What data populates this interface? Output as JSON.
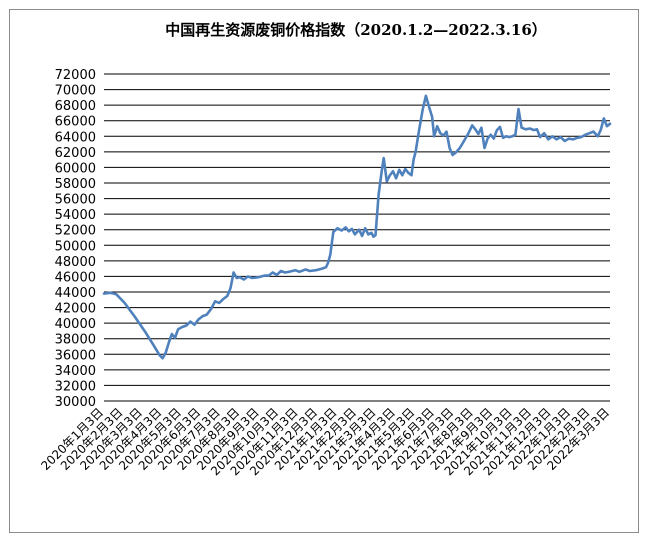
{
  "chart_data": {
    "type": "line",
    "title": "中国再生资源废铜价格指数（2020.1.2—2022.3.16）",
    "xlabel": "",
    "ylabel": "",
    "ylim": [
      30000,
      72000
    ],
    "y_ticks": [
      "72000",
      "70000",
      "68000",
      "66000",
      "64000",
      "62000",
      "60000",
      "58000",
      "56000",
      "54000",
      "52000",
      "50000",
      "48000",
      "46000",
      "44000",
      "42000",
      "40000",
      "38000",
      "36000",
      "34000",
      "32000",
      "30000"
    ],
    "x_tick_labels": [
      "2020年1月3日",
      "2020年2月3日",
      "2020年3月3日",
      "2020年4月3日",
      "2020年5月3日",
      "2020年6月3日",
      "2020年7月3日",
      "2020年8月3日",
      "2020年9月3日",
      "2020年10月3日",
      "2020年11月3日",
      "2020年12月3日",
      "2021年1月3日",
      "2021年2月3日",
      "2021年3月3日",
      "2021年4月3日",
      "2021年5月3日",
      "2021年6月3日",
      "2021年7月3日",
      "2021年8月3日",
      "2021年9月3日",
      "2021年10月3日",
      "2021年11月3日",
      "2021年12月3日",
      "2022年1月3日",
      "2022年2月3日",
      "2022年3月3日"
    ],
    "grid": "horizontal",
    "series_color": "#4f81bd",
    "series": [
      {
        "values": [
          [
            0.0,
            43800
          ],
          [
            0.3,
            43900
          ],
          [
            0.6,
            43700
          ],
          [
            1.0,
            42600
          ],
          [
            1.5,
            40800
          ],
          [
            2.0,
            38900
          ],
          [
            2.4,
            37200
          ],
          [
            2.7,
            35900
          ],
          [
            2.85,
            35500
          ],
          [
            3.0,
            36200
          ],
          [
            3.15,
            37500
          ],
          [
            3.3,
            38600
          ],
          [
            3.45,
            38100
          ],
          [
            3.6,
            39200
          ],
          [
            3.8,
            39500
          ],
          [
            4.0,
            39700
          ],
          [
            4.2,
            40200
          ],
          [
            4.4,
            39800
          ],
          [
            4.6,
            40500
          ],
          [
            4.8,
            40900
          ],
          [
            5.0,
            41100
          ],
          [
            5.2,
            41800
          ],
          [
            5.4,
            42800
          ],
          [
            5.6,
            42600
          ],
          [
            5.8,
            43100
          ],
          [
            6.0,
            43500
          ],
          [
            6.15,
            44500
          ],
          [
            6.3,
            46500
          ],
          [
            6.45,
            45800
          ],
          [
            6.6,
            45900
          ],
          [
            6.8,
            45600
          ],
          [
            7.0,
            46000
          ],
          [
            7.2,
            45800
          ],
          [
            7.5,
            45900
          ],
          [
            7.8,
            46100
          ],
          [
            8.0,
            46100
          ],
          [
            8.2,
            46500
          ],
          [
            8.4,
            46200
          ],
          [
            8.6,
            46700
          ],
          [
            8.8,
            46500
          ],
          [
            9.0,
            46600
          ],
          [
            9.3,
            46800
          ],
          [
            9.5,
            46600
          ],
          [
            9.8,
            46900
          ],
          [
            10.0,
            46700
          ],
          [
            10.3,
            46800
          ],
          [
            10.6,
            47000
          ],
          [
            10.8,
            47200
          ],
          [
            10.9,
            47800
          ],
          [
            11.0,
            48800
          ],
          [
            11.15,
            51700
          ],
          [
            11.35,
            52200
          ],
          [
            11.55,
            51900
          ],
          [
            11.75,
            52300
          ],
          [
            11.9,
            51800
          ],
          [
            12.05,
            52100
          ],
          [
            12.2,
            51400
          ],
          [
            12.4,
            52000
          ],
          [
            12.55,
            51200
          ],
          [
            12.7,
            52200
          ],
          [
            12.85,
            51400
          ],
          [
            13.0,
            51600
          ],
          [
            13.1,
            51100
          ],
          [
            13.2,
            51300
          ],
          [
            13.35,
            56500
          ],
          [
            13.5,
            59500
          ],
          [
            13.6,
            61200
          ],
          [
            13.75,
            58200
          ],
          [
            13.9,
            59000
          ],
          [
            14.05,
            59500
          ],
          [
            14.2,
            58600
          ],
          [
            14.35,
            59700
          ],
          [
            14.5,
            59000
          ],
          [
            14.65,
            59800
          ],
          [
            14.8,
            59300
          ],
          [
            14.95,
            59000
          ],
          [
            15.05,
            61000
          ],
          [
            15.15,
            62000
          ],
          [
            15.3,
            64500
          ],
          [
            15.5,
            67500
          ],
          [
            15.65,
            69200
          ],
          [
            15.8,
            67800
          ],
          [
            15.95,
            66500
          ],
          [
            16.05,
            64000
          ],
          [
            16.2,
            65300
          ],
          [
            16.35,
            64400
          ],
          [
            16.5,
            64100
          ],
          [
            16.65,
            64600
          ],
          [
            16.8,
            62500
          ],
          [
            16.95,
            61600
          ],
          [
            17.1,
            61900
          ],
          [
            17.3,
            62500
          ],
          [
            17.5,
            63400
          ],
          [
            17.7,
            64300
          ],
          [
            17.9,
            65400
          ],
          [
            18.05,
            64900
          ],
          [
            18.2,
            64300
          ],
          [
            18.35,
            65100
          ],
          [
            18.5,
            62500
          ],
          [
            18.65,
            63700
          ],
          [
            18.8,
            64200
          ],
          [
            18.95,
            63700
          ],
          [
            19.1,
            64800
          ],
          [
            19.25,
            65200
          ],
          [
            19.4,
            63800
          ],
          [
            19.55,
            64000
          ],
          [
            19.7,
            63900
          ],
          [
            19.85,
            64000
          ],
          [
            20.0,
            64200
          ],
          [
            20.15,
            67500
          ],
          [
            20.3,
            65100
          ],
          [
            20.5,
            64900
          ],
          [
            20.7,
            65000
          ],
          [
            20.9,
            64800
          ],
          [
            21.05,
            64900
          ],
          [
            21.2,
            63900
          ],
          [
            21.4,
            64400
          ],
          [
            21.6,
            63600
          ],
          [
            21.8,
            64000
          ],
          [
            22.0,
            63600
          ],
          [
            22.2,
            63900
          ],
          [
            22.4,
            63400
          ],
          [
            22.6,
            63700
          ],
          [
            22.8,
            63600
          ],
          [
            23.0,
            63800
          ],
          [
            23.2,
            63900
          ],
          [
            23.4,
            64200
          ],
          [
            23.6,
            64400
          ],
          [
            23.8,
            64600
          ],
          [
            24.0,
            64000
          ],
          [
            24.15,
            64800
          ],
          [
            24.3,
            66300
          ],
          [
            24.45,
            65300
          ],
          [
            24.6,
            65600
          ]
        ]
      }
    ]
  }
}
